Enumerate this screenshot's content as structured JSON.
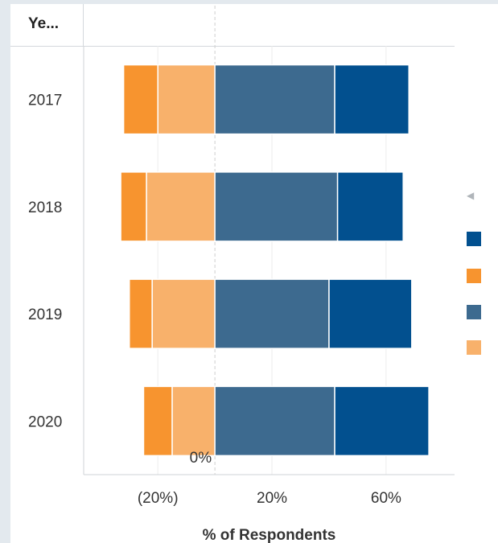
{
  "header": {
    "title": "Ye..."
  },
  "colors": {
    "dark_blue": "#02508f",
    "orange": "#f7942f",
    "steel_blue": "#3d6a8f",
    "light_orange": "#f8b16b"
  },
  "legend": {
    "collapse_icon": "triangle-left-icon",
    "swatches": [
      "#02508f",
      "#f7942f",
      "#3d6a8f",
      "#f8b16b"
    ]
  },
  "chart_data": {
    "type": "bar",
    "orientation": "horizontal-diverging",
    "categories": [
      "2017",
      "2018",
      "2019",
      "2020"
    ],
    "series": [
      {
        "color": "#f7942f",
        "values": [
          -12,
          -9,
          -8,
          -10
        ]
      },
      {
        "color": "#f8b16b",
        "values": [
          -20,
          -24,
          -22,
          -15
        ]
      },
      {
        "color": "#3d6a8f",
        "values": [
          42,
          43,
          40,
          42
        ]
      },
      {
        "color": "#02508f",
        "values": [
          26,
          23,
          29,
          33
        ]
      }
    ],
    "xlabel": "% of Respondents",
    "xlim": [
      -46,
      84
    ],
    "xticks": [
      {
        "value": -20,
        "label": "(20%)"
      },
      {
        "value": 20,
        "label": "20%"
      },
      {
        "value": 60,
        "label": "60%"
      }
    ],
    "zero_label": "0%",
    "grid": true
  }
}
